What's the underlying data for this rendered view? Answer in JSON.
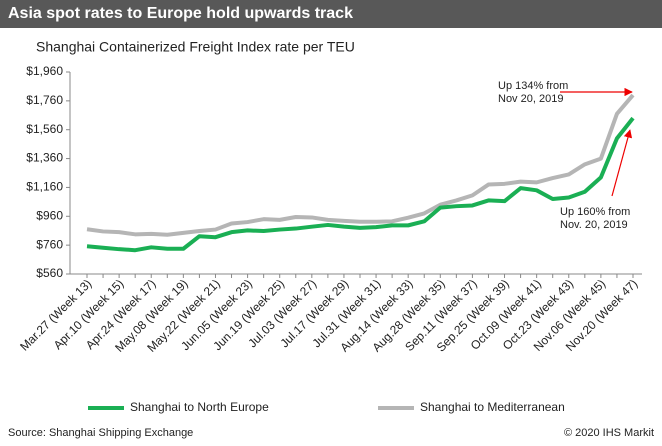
{
  "chart_data": {
    "type": "line",
    "title": "Asia spot rates to Europe hold upwards track",
    "subtitle": "Shanghai Containerized Freight Index rate per TEU",
    "categories": [
      "Mar.27 (Week 13)",
      null,
      "Apr.10 (Week 15)",
      null,
      "Apr.24 (Week 17)",
      null,
      "May.08 (Week 19)",
      null,
      "May.22 (Week 21)",
      null,
      "Jun.05 (Week 23)",
      null,
      "Jun.19 (Week 25)",
      null,
      "Jul.03 (Week 27)",
      null,
      "Jul.17 (Week 29)",
      null,
      "Jul.31 (Week 31)",
      null,
      "Aug.14 (Week 33)",
      null,
      "Aug.28 (Week 35)",
      null,
      "Sep.11 (Week 37)",
      null,
      "Sep.25 (Week 39)",
      null,
      "Oct.09 (Week 41)",
      null,
      "Oct.23 (Week 43)",
      null,
      "Nov.06 (Week 45)",
      null,
      "Nov.20 (Week 47)"
    ],
    "series": [
      {
        "name": "Shanghai to North Europe",
        "color": "#1aaf54",
        "values": [
          752,
          742,
          732,
          725,
          745,
          735,
          735,
          822,
          815,
          850,
          862,
          858,
          868,
          875,
          888,
          900,
          888,
          880,
          885,
          897,
          897,
          925,
          1020,
          1030,
          1035,
          1070,
          1065,
          1155,
          1140,
          1080,
          1090,
          1130,
          1230,
          1500,
          1640
        ]
      },
      {
        "name": "Shanghai to Mediterranean",
        "color": "#b5b5b5",
        "values": [
          870,
          855,
          850,
          835,
          838,
          832,
          845,
          858,
          868,
          910,
          920,
          940,
          935,
          955,
          952,
          935,
          928,
          922,
          922,
          925,
          950,
          980,
          1040,
          1070,
          1105,
          1180,
          1185,
          1200,
          1195,
          1225,
          1250,
          1320,
          1360,
          1670,
          1800
        ]
      }
    ],
    "ylim": [
      560,
      1960
    ],
    "yticks": [
      {
        "value": 560,
        "label": "$560"
      },
      {
        "value": 760,
        "label": "$760"
      },
      {
        "value": 960,
        "label": "$960"
      },
      {
        "value": 1160,
        "label": "$1,160"
      },
      {
        "value": 1360,
        "label": "$1,360"
      },
      {
        "value": 1560,
        "label": "$1,560"
      },
      {
        "value": 1760,
        "label": "$1,760"
      },
      {
        "value": 1960,
        "label": "$1,960"
      }
    ],
    "annotations": [
      {
        "lines": [
          "Up 134% from",
          "Nov 20, 2019"
        ]
      },
      {
        "lines": [
          "Up  160% from",
          "Nov. 20, 2019"
        ]
      }
    ],
    "source": "Source: Shanghai Shipping Exchange",
    "credit": "© 2020 IHS Markit"
  }
}
